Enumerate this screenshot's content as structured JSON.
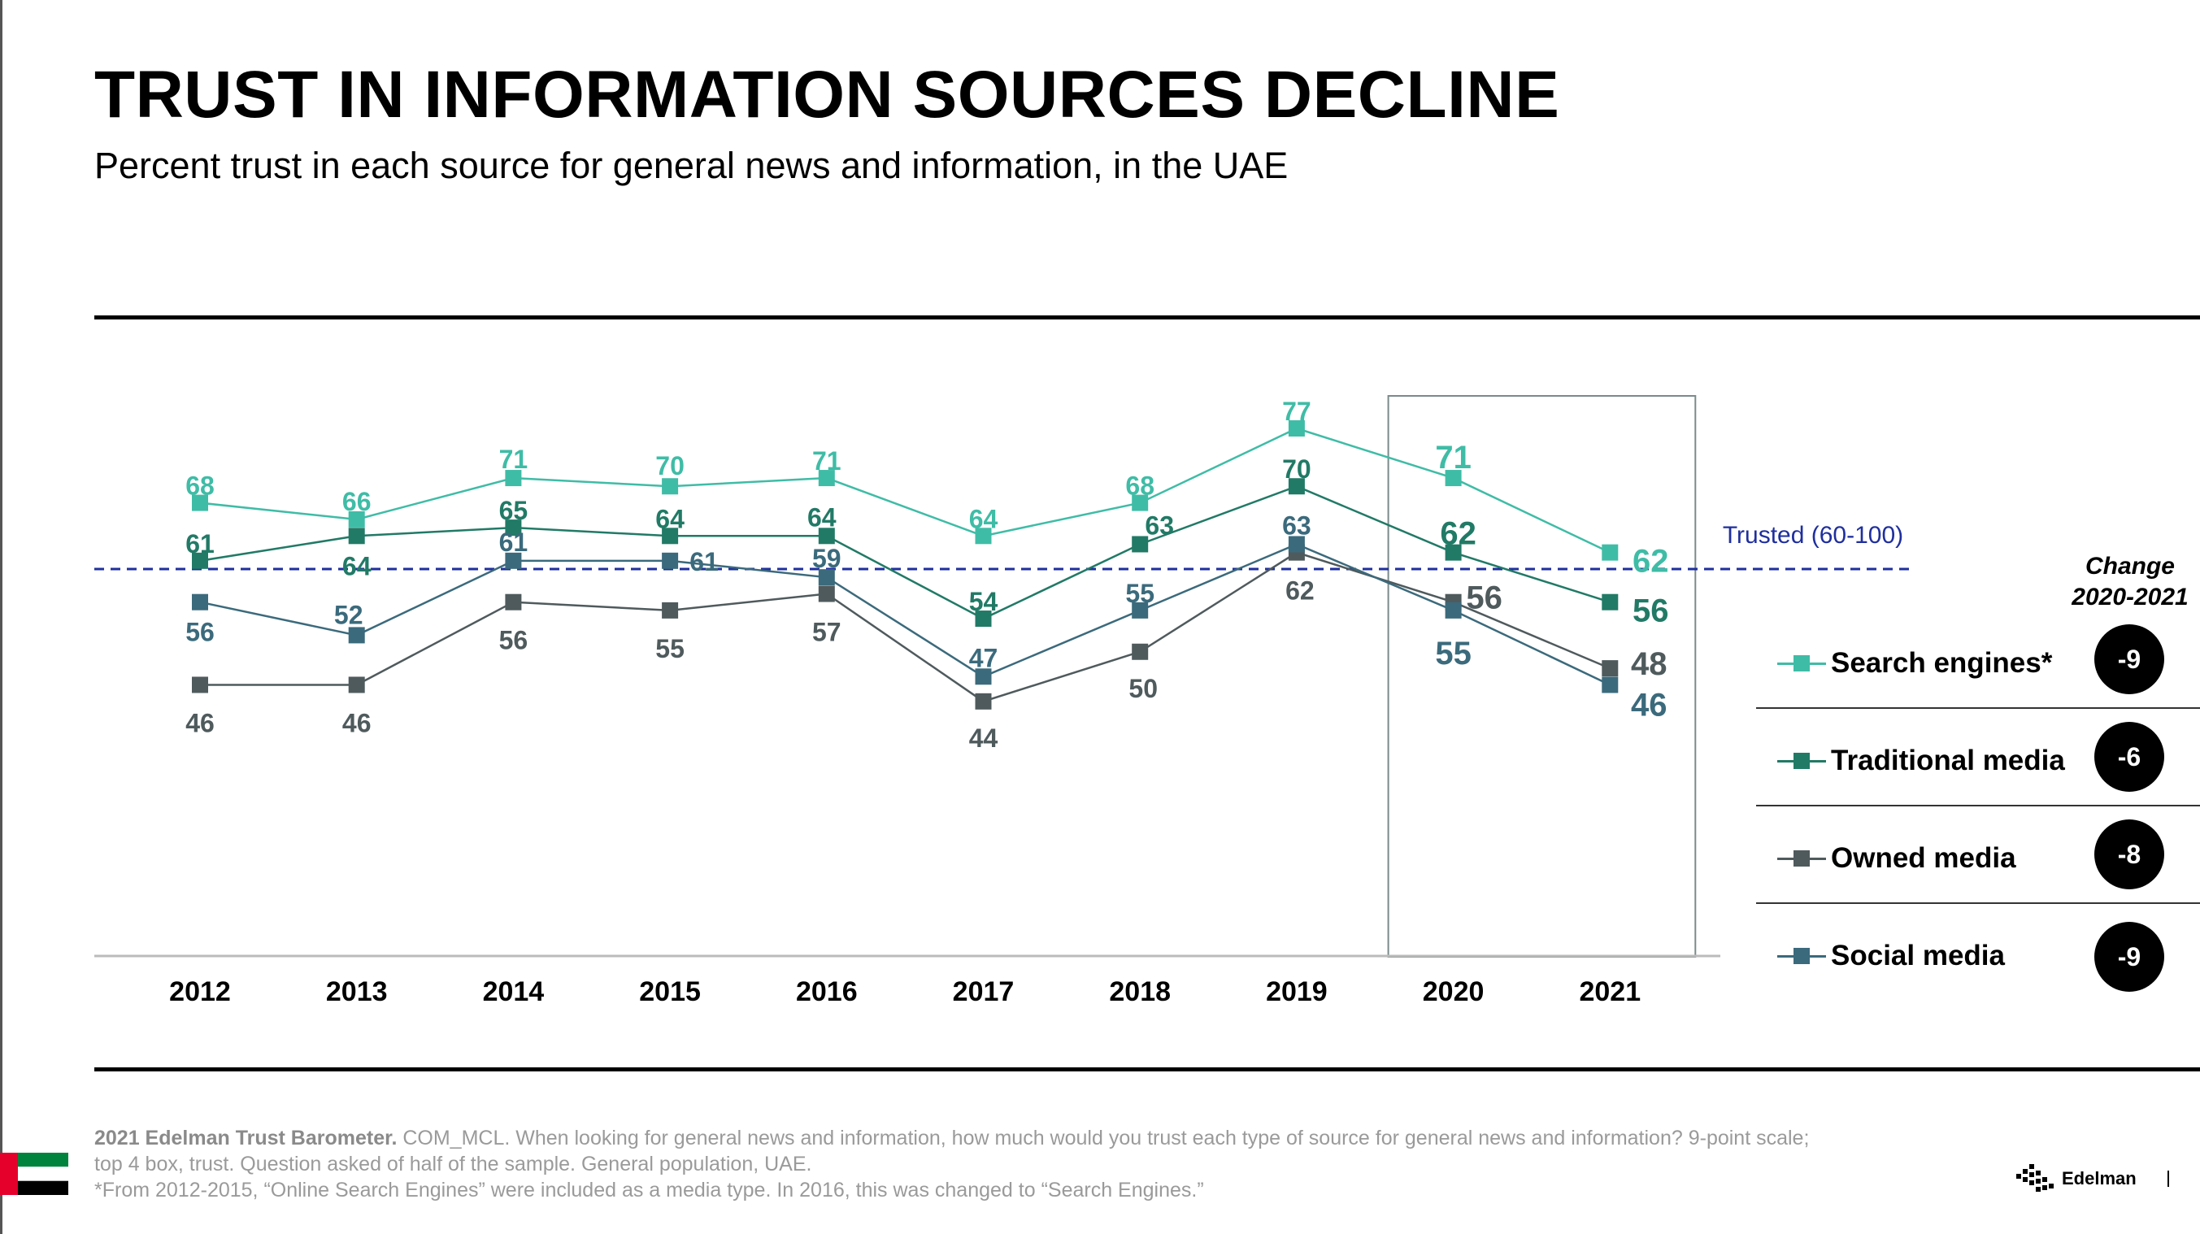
{
  "title": "TRUST IN INFORMATION SOURCES DECLINE",
  "subtitle": "Percent trust in each source for general news and information, in the UAE",
  "colors": {
    "search": "#3fbca6",
    "traditional": "#217a66",
    "owned": "#4f5a5d",
    "social": "#3b6a7c",
    "trusted_line": "#1f2f9e"
  },
  "chart_data": {
    "type": "line",
    "x": [
      "2012",
      "2013",
      "2014",
      "2015",
      "2016",
      "2017",
      "2018",
      "2019",
      "2020",
      "2021"
    ],
    "series": [
      {
        "name": "Search engines*",
        "values": [
          68,
          66,
          71,
          70,
          71,
          64,
          68,
          77,
          71,
          62
        ]
      },
      {
        "name": "Traditional media",
        "values": [
          61,
          64,
          65,
          64,
          64,
          54,
          63,
          70,
          62,
          56
        ]
      },
      {
        "name": "Owned media",
        "values": [
          46,
          46,
          56,
          55,
          57,
          44,
          50,
          62,
          56,
          48
        ]
      },
      {
        "name": "Social media",
        "values": [
          56,
          52,
          61,
          61,
          59,
          47,
          55,
          63,
          55,
          46
        ]
      }
    ],
    "reference_line": {
      "value": 60,
      "label": "Trusted (60-100)"
    },
    "highlight_years": [
      "2020",
      "2021"
    ],
    "change_header": [
      "Change",
      "2020-2021"
    ],
    "changes": [
      "-9",
      "-6",
      "-8",
      "-9"
    ]
  },
  "footnote": {
    "source_bold": "2021 Edelman Trust Barometer.",
    "line1": "COM_MCL. When looking for general news and information, how much would you trust each type of source for general news and information? 9-point scale;",
    "line2": "top 4 box, trust. Question asked of half of the sample. General population, UAE.",
    "line3": "*From 2012-2015, “Online Search Engines” were included as a media type. In 2016, this was changed to “Search Engines.”"
  },
  "brand": "Edelman"
}
